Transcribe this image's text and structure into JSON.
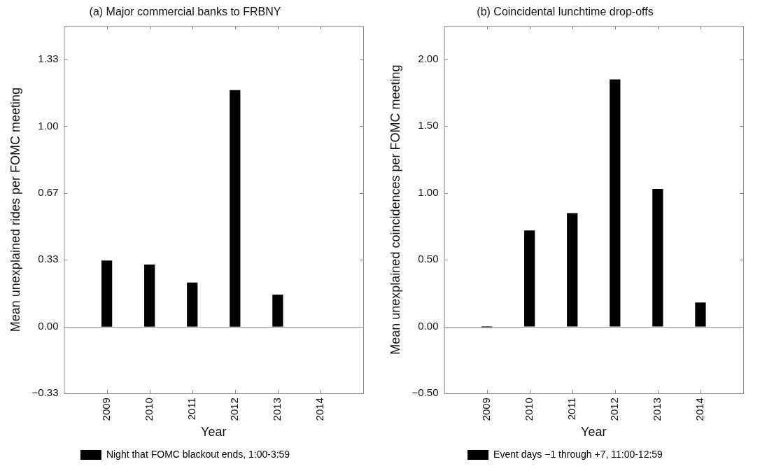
{
  "chart_data": [
    {
      "type": "bar",
      "title": "(a) Major commercial banks to FRBNY",
      "xlabel": "Year",
      "ylabel": "Mean unexplained rides per FOMC meeting",
      "categories": [
        "2009",
        "2010",
        "2011",
        "2012",
        "2013",
        "2014"
      ],
      "series": [
        {
          "name": "Night that FOMC blackout ends, 1:00-3:59",
          "color": "#000000",
          "values": [
            0.33,
            0.31,
            0.22,
            1.18,
            0.16,
            0
          ]
        }
      ],
      "ylim": [
        -0.333,
        1.5
      ],
      "yticks": [
        {
          "value": -0.333,
          "label": "−0.33"
        },
        {
          "value": 0,
          "label": "0.00"
        },
        {
          "value": 0.333,
          "label": "0.33"
        },
        {
          "value": 0.667,
          "label": "0.67"
        },
        {
          "value": 1,
          "label": "1.00"
        },
        {
          "value": 1.333,
          "label": "1.33"
        }
      ],
      "ref_lines": [
        {
          "axis": "y",
          "value": 0,
          "color": "#888888"
        }
      ],
      "grid": false,
      "legend": "bottom"
    },
    {
      "type": "bar",
      "title": "(b) Coincidental lunchtime drop-offs",
      "xlabel": "Year",
      "ylabel": "Mean unexplained coincidences per FOMC meeting",
      "categories": [
        "2009",
        "2010",
        "2011",
        "2012",
        "2013",
        "2014"
      ],
      "series": [
        {
          "name": "Event days −1 through +7, 11:00-12:59",
          "color": "#000000",
          "values": [
            -0.01,
            0.72,
            0.85,
            1.85,
            1.03,
            0.18
          ]
        }
      ],
      "ylim": [
        -0.5,
        2.25
      ],
      "yticks": [
        {
          "value": -0.5,
          "label": "−0.50"
        },
        {
          "value": 0,
          "label": "0.00"
        },
        {
          "value": 0.5,
          "label": "0.50"
        },
        {
          "value": 1,
          "label": "1.00"
        },
        {
          "value": 1.5,
          "label": "1.50"
        },
        {
          "value": 2,
          "label": "2.00"
        }
      ],
      "ref_lines": [
        {
          "axis": "y",
          "value": 0,
          "color": "#888888"
        }
      ],
      "grid": false,
      "legend": "bottom"
    }
  ]
}
